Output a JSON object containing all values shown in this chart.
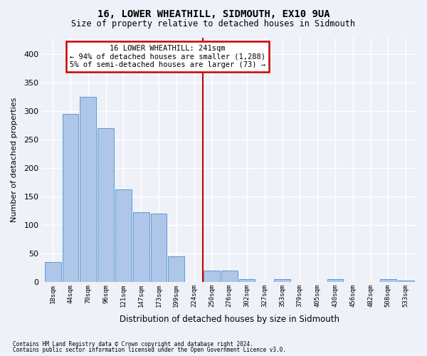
{
  "title1": "16, LOWER WHEATHILL, SIDMOUTH, EX10 9UA",
  "title2": "Size of property relative to detached houses in Sidmouth",
  "xlabel": "Distribution of detached houses by size in Sidmouth",
  "ylabel": "Number of detached properties",
  "footer1": "Contains HM Land Registry data © Crown copyright and database right 2024.",
  "footer2": "Contains public sector information licensed under the Open Government Licence v3.0.",
  "bin_labels": [
    "18sqm",
    "44sqm",
    "70sqm",
    "96sqm",
    "121sqm",
    "147sqm",
    "173sqm",
    "199sqm",
    "224sqm",
    "250sqm",
    "276sqm",
    "302sqm",
    "327sqm",
    "353sqm",
    "379sqm",
    "405sqm",
    "430sqm",
    "456sqm",
    "482sqm",
    "508sqm",
    "533sqm"
  ],
  "bar_heights": [
    35,
    296,
    325,
    270,
    163,
    122,
    120,
    45,
    0,
    20,
    20,
    5,
    0,
    5,
    0,
    0,
    5,
    0,
    0,
    5,
    2
  ],
  "bar_color": "#aec6e8",
  "bar_edge_color": "#5b9bd5",
  "vline_color": "#cc0000",
  "annotation_title": "16 LOWER WHEATHILL: 241sqm",
  "annotation_line1": "← 94% of detached houses are smaller (1,288)",
  "annotation_line2": "5% of semi-detached houses are larger (73) →",
  "annotation_box_color": "#ffffff",
  "annotation_box_edge": "#cc0000",
  "ylim_max": 430,
  "yticks": [
    0,
    50,
    100,
    150,
    200,
    250,
    300,
    350,
    400
  ],
  "background_color": "#eef2f8",
  "grid_color": "#ffffff"
}
